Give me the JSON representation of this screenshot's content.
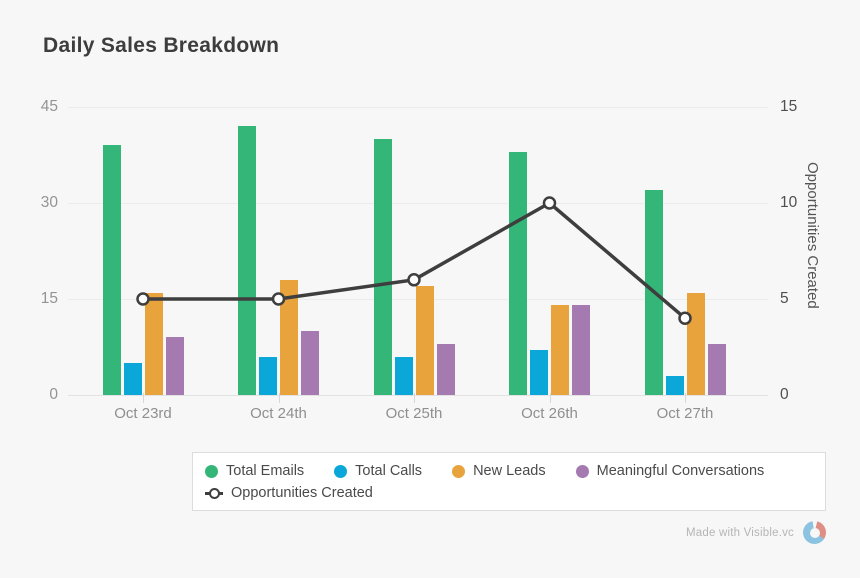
{
  "title": "Daily Sales Breakdown",
  "footer": {
    "credit": "Made with Visible.vc"
  },
  "icons": {
    "logo": "donut-chart-icon"
  },
  "colors": {
    "background": "#f7f7f7",
    "total_emails": "#34b678",
    "total_calls": "#0aa7d8",
    "new_leads": "#e8a33d",
    "meaningful_conversations": "#a57ab0",
    "opportunities_line": "#3e3e3e",
    "logo_blue": "#8cc3e0",
    "logo_coral": "#de8e85"
  },
  "chart_data": {
    "type": "bar",
    "title": "Daily Sales Breakdown",
    "categories": [
      "Oct 23rd",
      "Oct 24th",
      "Oct 25th",
      "Oct 26th",
      "Oct 27th"
    ],
    "series": [
      {
        "name": "Total Emails",
        "type": "bar",
        "axis": "left",
        "color": "#34b678",
        "values": [
          39,
          42,
          40,
          38,
          32
        ]
      },
      {
        "name": "Total Calls",
        "type": "bar",
        "axis": "left",
        "color": "#0aa7d8",
        "values": [
          5,
          6,
          6,
          7,
          3
        ]
      },
      {
        "name": "New Leads",
        "type": "bar",
        "axis": "left",
        "color": "#e8a33d",
        "values": [
          16,
          18,
          17,
          14,
          16
        ]
      },
      {
        "name": "Meaningful Conversations",
        "type": "bar",
        "axis": "left",
        "color": "#a57ab0",
        "values": [
          9,
          10,
          8,
          14,
          8
        ]
      },
      {
        "name": "Opportunities Created",
        "type": "line",
        "axis": "right",
        "color": "#3e3e3e",
        "values": [
          5,
          5,
          6,
          10,
          4
        ]
      }
    ],
    "left_axis": {
      "ticks": [
        0,
        15,
        30,
        45
      ],
      "range": [
        0,
        45
      ]
    },
    "right_axis": {
      "ticks": [
        0,
        5,
        10,
        15
      ],
      "range": [
        0,
        15
      ],
      "label": "Opportunities Created"
    },
    "grid": "horizontal",
    "legend_position": "bottom"
  }
}
